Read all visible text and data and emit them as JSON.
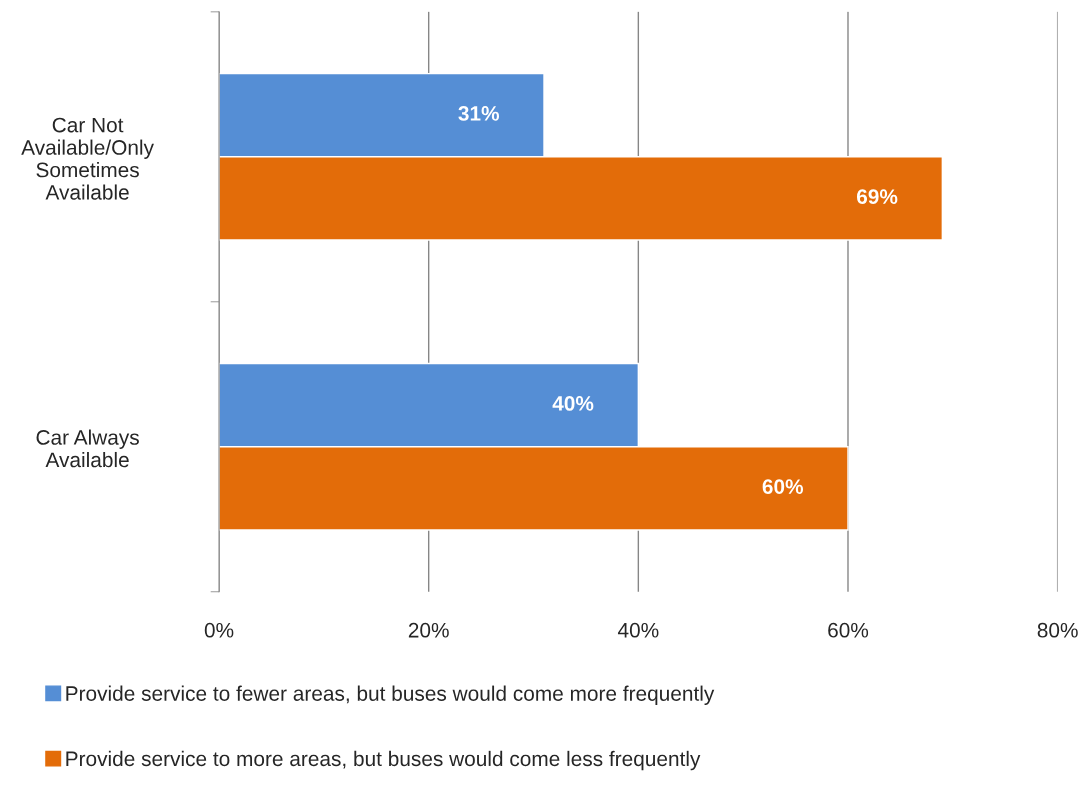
{
  "chart_data": {
    "type": "bar",
    "orientation": "horizontal",
    "categories": [
      "Car Not\nAvailable/Only\nSometimes\nAvailable",
      "Car Always\nAvailable"
    ],
    "series": [
      {
        "name": "Provide service to fewer areas, but buses would come more frequently",
        "color": "#558ed5",
        "values": [
          31,
          40
        ],
        "value_labels": [
          "31%",
          "40%"
        ]
      },
      {
        "name": "Provide service to more areas, but buses would come less frequently",
        "color": "#e36c09",
        "values": [
          69,
          60
        ],
        "value_labels": [
          "69%",
          "60%"
        ]
      }
    ],
    "xlim": [
      0,
      80
    ],
    "xticks": [
      {
        "value": 0,
        "label": "0%"
      },
      {
        "value": 20,
        "label": "20%"
      },
      {
        "value": 40,
        "label": "40%"
      },
      {
        "value": 60,
        "label": "60%"
      },
      {
        "value": 80,
        "label": "80%"
      }
    ],
    "grid": "x",
    "legend": "bottom"
  }
}
